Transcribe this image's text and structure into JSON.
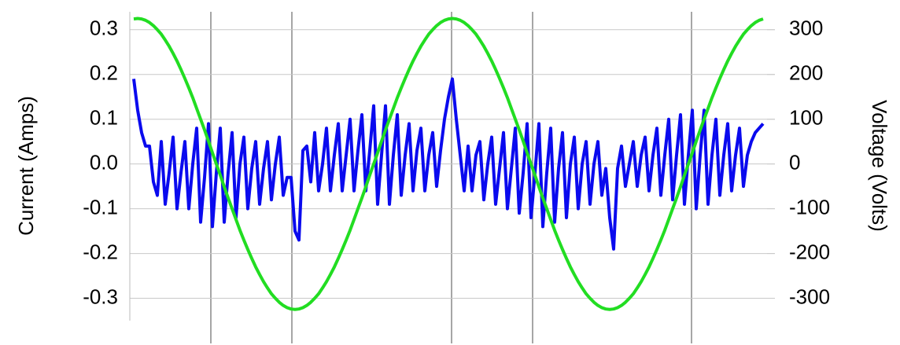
{
  "chart_data": {
    "type": "line",
    "y_label": "Current (Amps)",
    "y2_label": "Voltage (Volts)",
    "ylim": [
      -0.35,
      0.34
    ],
    "yticks": [
      0.3,
      0.2,
      0.1,
      {
        "value": 0,
        "label": "0.0"
      },
      -0.1,
      -0.2,
      -0.3
    ],
    "y2lim": [
      -350,
      340
    ],
    "y2ticks": [
      300,
      200,
      100,
      0,
      -100,
      -200,
      -300
    ],
    "grid": true,
    "series": [
      {
        "name": "Current",
        "color": "#0a0aee",
        "axis": "y",
        "values": [
          0.19,
          0.12,
          0.07,
          0.04,
          0.04,
          -0.04,
          -0.07,
          0.05,
          -0.09,
          -0.02,
          0.06,
          -0.1,
          -0.02,
          0.05,
          -0.1,
          0.0,
          0.08,
          -0.13,
          -0.03,
          0.09,
          -0.14,
          -0.02,
          0.08,
          -0.13,
          -0.02,
          0.07,
          -0.12,
          0.0,
          0.06,
          -0.1,
          -0.01,
          0.05,
          -0.09,
          -0.01,
          0.05,
          -0.08,
          0.0,
          0.06,
          -0.07,
          -0.03,
          -0.03,
          -0.15,
          -0.17,
          0.03,
          0.04,
          -0.04,
          0.07,
          -0.06,
          0.0,
          0.08,
          -0.06,
          0.02,
          0.09,
          -0.06,
          0.02,
          0.1,
          -0.06,
          0.03,
          0.11,
          -0.06,
          0.03,
          0.13,
          -0.09,
          0.02,
          0.13,
          -0.09,
          0.02,
          0.11,
          -0.07,
          0.02,
          0.09,
          -0.06,
          0.03,
          0.08,
          -0.06,
          0.02,
          0.07,
          -0.05,
          0.03,
          0.1,
          0.15,
          0.19,
          0.1,
          0.02,
          -0.06,
          0.04,
          -0.06,
          0.02,
          0.05,
          -0.08,
          0.0,
          0.06,
          -0.09,
          -0.01,
          0.07,
          -0.1,
          -0.01,
          0.08,
          -0.11,
          -0.02,
          0.09,
          -0.12,
          -0.02,
          0.09,
          -0.14,
          -0.02,
          0.08,
          -0.13,
          -0.01,
          0.07,
          -0.12,
          0.0,
          0.06,
          -0.1,
          0.0,
          0.05,
          -0.09,
          0.0,
          0.05,
          -0.07,
          -0.01,
          -0.12,
          -0.19,
          -0.01,
          0.04,
          -0.05,
          0.0,
          0.05,
          -0.05,
          0.02,
          0.06,
          -0.06,
          0.02,
          0.08,
          -0.07,
          0.02,
          0.1,
          -0.08,
          0.02,
          0.11,
          -0.09,
          0.02,
          0.12,
          -0.1,
          0.02,
          0.12,
          -0.09,
          0.02,
          0.1,
          -0.07,
          0.02,
          0.09,
          -0.06,
          0.02,
          0.08,
          -0.05,
          0.02,
          0.05,
          0.07,
          0.08,
          0.09
        ]
      },
      {
        "name": "Voltage",
        "color": "#22dd22",
        "axis": "y2",
        "values": [
          324,
          325,
          324,
          321,
          316,
          309,
          300,
          290,
          277,
          263,
          247,
          230,
          211,
          191,
          170,
          148,
          124,
          100,
          76,
          51,
          25,
          0,
          -25,
          -51,
          -76,
          -100,
          -124,
          -148,
          -170,
          -191,
          -211,
          -230,
          -247,
          -263,
          -277,
          -290,
          -300,
          -309,
          -316,
          -321,
          -324,
          -325,
          -324,
          -321,
          -316,
          -309,
          -300,
          -290,
          -277,
          -263,
          -247,
          -230,
          -211,
          -191,
          -170,
          -148,
          -124,
          -100,
          -76,
          -51,
          -25,
          0,
          25,
          51,
          76,
          100,
          124,
          148,
          170,
          191,
          211,
          230,
          247,
          263,
          277,
          290,
          300,
          309,
          316,
          321,
          324,
          325,
          324,
          321,
          316,
          309,
          300,
          290,
          277,
          263,
          247,
          230,
          211,
          191,
          170,
          148,
          124,
          100,
          76,
          51,
          25,
          0,
          -25,
          -51,
          -76,
          -100,
          -124,
          -148,
          -170,
          -191,
          -211,
          -230,
          -247,
          -263,
          -277,
          -290,
          -300,
          -309,
          -316,
          -321,
          -324,
          -325,
          -324,
          -321,
          -316,
          -309,
          -300,
          -290,
          -277,
          -263,
          -247,
          -230,
          -211,
          -191,
          -170,
          -148,
          -124,
          -100,
          -76,
          -51,
          -25,
          0,
          25,
          51,
          76,
          100,
          124,
          148,
          170,
          191,
          211,
          230,
          247,
          263,
          277,
          290,
          300,
          309,
          316,
          321,
          324
        ]
      }
    ]
  }
}
